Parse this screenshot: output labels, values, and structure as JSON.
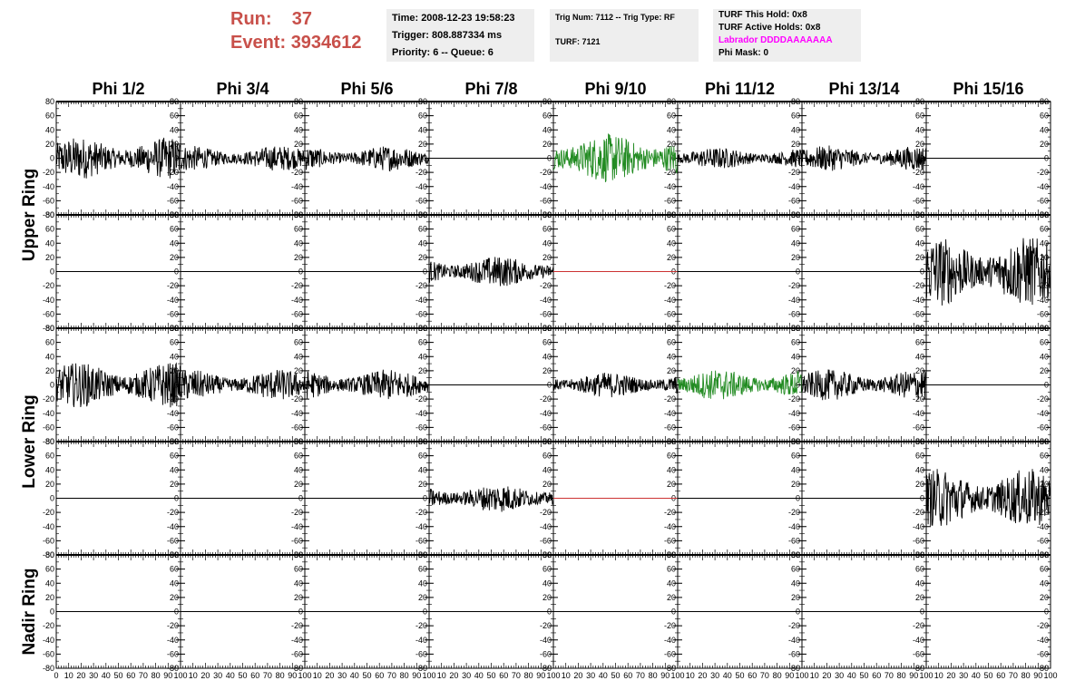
{
  "header": {
    "run_label": "Run:",
    "run_value": "37",
    "event_label": "Event:",
    "event_value": "3934612",
    "run_color": "#c8504a"
  },
  "info_time": {
    "time": "Time: 2008-12-23 19:58:23",
    "trigger": "Trigger: 808.887334 ms",
    "priority": "Priority: 6 -- Queue: 6"
  },
  "info_trig": {
    "trig": "Trig Num: 7112 -- Trig Type: RF",
    "turf": "TURF: 7121"
  },
  "info_turf": {
    "this_hold": "TURF This Hold: 0x8",
    "active_holds": "TURF Active Holds: 0x8",
    "labrador": "Labrador DDDDAAAAAAA",
    "labrador_color": "#ff00ff",
    "phi_mask": "Phi Mask: 0"
  },
  "chart_data": {
    "type": "line",
    "title": "",
    "columns": [
      "Phi 1/2",
      "Phi 3/4",
      "Phi 5/6",
      "Phi 7/8",
      "Phi 9/10",
      "Phi 11/12",
      "Phi 13/14",
      "Phi 15/16"
    ],
    "ring_labels": [
      {
        "name": "Upper Ring",
        "rows": [
          0,
          1
        ]
      },
      {
        "name": "Lower Ring",
        "rows": [
          2,
          3
        ]
      },
      {
        "name": "Nadir Ring",
        "rows": [
          4
        ]
      }
    ],
    "xlim": [
      0,
      100
    ],
    "ylim": [
      -80,
      80
    ],
    "x_ticks": [
      0,
      10,
      20,
      30,
      40,
      50,
      60,
      70,
      80,
      90,
      100
    ],
    "y_ticks": [
      -80,
      -60,
      -40,
      -20,
      0,
      20,
      40,
      60,
      80
    ],
    "colors": {
      "normal": "#000000",
      "triggered": "#228b22",
      "flat_alt": "#cc3333"
    },
    "panels": [
      [
        {
          "amp": 30,
          "color": "normal"
        },
        {
          "amp": 18,
          "color": "normal"
        },
        {
          "amp": 18,
          "color": "normal"
        },
        {
          "amp": 0,
          "color": "normal"
        },
        {
          "amp": 35,
          "color": "triggered"
        },
        {
          "amp": 15,
          "color": "normal"
        },
        {
          "amp": 18,
          "color": "normal"
        },
        {
          "amp": 0,
          "color": "normal"
        }
      ],
      [
        {
          "amp": 0,
          "color": "normal"
        },
        {
          "amp": 0,
          "color": "normal"
        },
        {
          "amp": 0,
          "color": "normal"
        },
        {
          "amp": 22,
          "color": "normal"
        },
        {
          "amp": 0,
          "color": "flat_alt"
        },
        {
          "amp": 0,
          "color": "normal"
        },
        {
          "amp": 0,
          "color": "normal"
        },
        {
          "amp": 50,
          "color": "normal"
        }
      ],
      [
        {
          "amp": 32,
          "color": "normal"
        },
        {
          "amp": 22,
          "color": "normal"
        },
        {
          "amp": 22,
          "color": "normal"
        },
        {
          "amp": 0,
          "color": "normal"
        },
        {
          "amp": 18,
          "color": "normal"
        },
        {
          "amp": 22,
          "color": "triggered"
        },
        {
          "amp": 22,
          "color": "normal"
        },
        {
          "amp": 0,
          "color": "normal"
        }
      ],
      [
        {
          "amp": 0,
          "color": "normal"
        },
        {
          "amp": 0,
          "color": "normal"
        },
        {
          "amp": 0,
          "color": "normal"
        },
        {
          "amp": 20,
          "color": "normal"
        },
        {
          "amp": 0,
          "color": "flat_alt"
        },
        {
          "amp": 0,
          "color": "normal"
        },
        {
          "amp": 0,
          "color": "normal"
        },
        {
          "amp": 42,
          "color": "normal"
        }
      ],
      [
        {
          "amp": 0,
          "color": "normal"
        },
        {
          "amp": 0,
          "color": "normal"
        },
        {
          "amp": 0,
          "color": "normal"
        },
        {
          "amp": 0,
          "color": "normal"
        },
        {
          "amp": 0,
          "color": "normal"
        },
        {
          "amp": 0,
          "color": "normal"
        },
        {
          "amp": 0,
          "color": "normal"
        },
        {
          "amp": 0,
          "color": "normal"
        }
      ]
    ]
  }
}
